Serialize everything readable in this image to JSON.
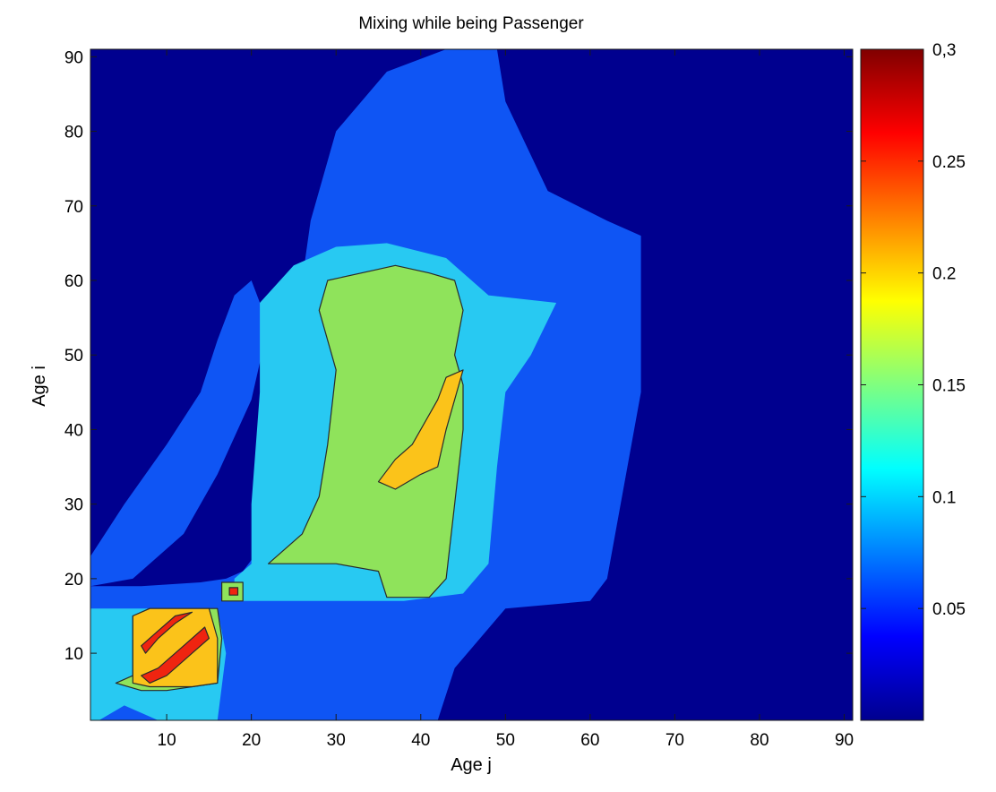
{
  "chart_data": {
    "type": "heatmap",
    "subtype": "filled-contour",
    "title": "Mixing while being Passenger",
    "xlabel": "Age j",
    "ylabel": "Age i",
    "xlim": [
      1,
      91
    ],
    "ylim": [
      1,
      91
    ],
    "xticks": [
      10,
      20,
      30,
      40,
      50,
      60,
      70,
      80,
      90
    ],
    "yticks": [
      10,
      20,
      30,
      40,
      50,
      60,
      70,
      80,
      90
    ],
    "colorbar": {
      "colormap": "jet",
      "range": [
        0,
        0.3
      ],
      "ticks": [
        "0.05",
        "0.1",
        "0.15",
        "0.2",
        "0.25",
        "0,3"
      ],
      "tick_values": [
        0.05,
        0.1,
        0.15,
        0.2,
        0.25,
        0.3
      ]
    },
    "contour_levels": [
      0.0375,
      0.075,
      0.1125,
      0.15,
      0.1875,
      0.225
    ],
    "level_colors": [
      "#00008f",
      "#0f55f4",
      "#28c9f2",
      "#8fe35b",
      "#fbc31a",
      "#ef2410"
    ],
    "regions": [
      {
        "level": 1,
        "desc": "youth block",
        "polygon": [
          [
            1,
            1
          ],
          [
            1,
            19
          ],
          [
            7,
            19
          ],
          [
            14,
            19.5
          ],
          [
            17,
            20
          ],
          [
            19,
            21
          ],
          [
            21,
            24
          ],
          [
            24,
            30
          ],
          [
            25,
            38
          ],
          [
            25,
            50
          ],
          [
            26,
            60
          ],
          [
            27,
            68
          ],
          [
            30,
            80
          ],
          [
            36,
            88
          ],
          [
            43,
            91
          ],
          [
            49,
            91
          ],
          [
            50,
            84
          ],
          [
            55,
            72
          ],
          [
            62,
            68
          ],
          [
            66,
            66
          ],
          [
            66,
            45
          ],
          [
            62,
            20
          ],
          [
            60,
            17
          ],
          [
            50,
            16
          ],
          [
            44,
            8
          ],
          [
            42,
            1
          ]
        ]
      },
      {
        "level": 1,
        "desc": "diagonal band",
        "polygon": [
          [
            1,
            23
          ],
          [
            5,
            30
          ],
          [
            10,
            38
          ],
          [
            14,
            45
          ],
          [
            16,
            52
          ],
          [
            18,
            58
          ],
          [
            20,
            60
          ],
          [
            22,
            54
          ],
          [
            20,
            44
          ],
          [
            16,
            34
          ],
          [
            12,
            26
          ],
          [
            6,
            20
          ],
          [
            1,
            19
          ]
        ]
      },
      {
        "level": 1,
        "desc": "child corner",
        "polygon": [
          [
            1,
            1
          ],
          [
            1,
            9
          ],
          [
            5,
            10
          ],
          [
            10,
            9
          ],
          [
            14,
            5
          ],
          [
            16,
            1
          ]
        ]
      },
      {
        "level": 2,
        "desc": "adult core",
        "polygon": [
          [
            18,
            17
          ],
          [
            18,
            20
          ],
          [
            20,
            22
          ],
          [
            20,
            30
          ],
          [
            21,
            45
          ],
          [
            21,
            57
          ],
          [
            25,
            62
          ],
          [
            30,
            64.5
          ],
          [
            36,
            65
          ],
          [
            43,
            63
          ],
          [
            48,
            58
          ],
          [
            56,
            57
          ],
          [
            53,
            50
          ],
          [
            50,
            45
          ],
          [
            49,
            35
          ],
          [
            48,
            22
          ],
          [
            45,
            18
          ],
          [
            38,
            17
          ]
        ]
      },
      {
        "level": 2,
        "desc": "child block",
        "polygon": [
          [
            1,
            1
          ],
          [
            1,
            16
          ],
          [
            16,
            16
          ],
          [
            17,
            10
          ],
          [
            16,
            1
          ],
          [
            9,
            1
          ],
          [
            5,
            3
          ],
          [
            2,
            1
          ]
        ]
      },
      {
        "level": 3,
        "desc": "adult contact mass",
        "polygon": [
          [
            22,
            22
          ],
          [
            26,
            26
          ],
          [
            28,
            31
          ],
          [
            29,
            38
          ],
          [
            30,
            48
          ],
          [
            28,
            56
          ],
          [
            29,
            60
          ],
          [
            33,
            61
          ],
          [
            37,
            62
          ],
          [
            41,
            61
          ],
          [
            44,
            60
          ],
          [
            45,
            56
          ],
          [
            44,
            50
          ],
          [
            45,
            46
          ],
          [
            45,
            40
          ],
          [
            44,
            30
          ],
          [
            43,
            20
          ],
          [
            41,
            17.5
          ],
          [
            36,
            17.5
          ],
          [
            35,
            21
          ],
          [
            30,
            22
          ]
        ]
      },
      {
        "level": 3,
        "desc": "child ring",
        "polygon": [
          [
            4,
            6
          ],
          [
            6,
            7
          ],
          [
            6,
            15
          ],
          [
            8,
            16
          ],
          [
            16,
            16
          ],
          [
            16.5,
            12
          ],
          [
            16,
            6
          ],
          [
            10,
            5
          ],
          [
            7,
            5
          ]
        ]
      },
      {
        "level": 3,
        "desc": "teen blob",
        "polygon": [
          [
            16.5,
            17
          ],
          [
            16.5,
            19.5
          ],
          [
            19,
            19.5
          ],
          [
            19,
            17
          ]
        ]
      },
      {
        "level": 4,
        "desc": "adult diagonal",
        "polygon": [
          [
            35,
            33
          ],
          [
            37,
            36
          ],
          [
            39,
            38
          ],
          [
            41,
            42
          ],
          [
            42,
            44
          ],
          [
            43,
            47
          ],
          [
            45,
            48
          ],
          [
            44,
            44
          ],
          [
            43,
            40
          ],
          [
            42,
            35
          ],
          [
            40,
            34
          ],
          [
            37,
            32
          ]
        ]
      },
      {
        "level": 4,
        "desc": "child square",
        "polygon": [
          [
            6,
            6
          ],
          [
            6,
            15
          ],
          [
            8,
            16
          ],
          [
            15,
            16
          ],
          [
            16,
            12
          ],
          [
            16,
            6
          ],
          [
            13,
            5.5
          ],
          [
            8,
            5.5
          ]
        ]
      },
      {
        "level": 5,
        "desc": "child band lower",
        "polygon": [
          [
            7,
            7
          ],
          [
            9,
            8
          ],
          [
            12,
            11
          ],
          [
            14.5,
            13.5
          ],
          [
            15,
            12
          ],
          [
            13,
            10
          ],
          [
            10,
            7
          ],
          [
            8,
            6
          ]
        ]
      },
      {
        "level": 5,
        "desc": "child band upper",
        "polygon": [
          [
            7,
            11
          ],
          [
            9,
            13
          ],
          [
            11,
            15
          ],
          [
            13,
            15.5
          ],
          [
            11,
            14
          ],
          [
            9,
            12
          ],
          [
            7.5,
            10
          ]
        ]
      },
      {
        "level": 5,
        "desc": "teen spot",
        "polygon": [
          [
            17.4,
            17.8
          ],
          [
            17.4,
            18.8
          ],
          [
            18.4,
            18.8
          ],
          [
            18.4,
            17.8
          ]
        ]
      }
    ],
    "grid": false,
    "legend": "colorbar-right"
  }
}
